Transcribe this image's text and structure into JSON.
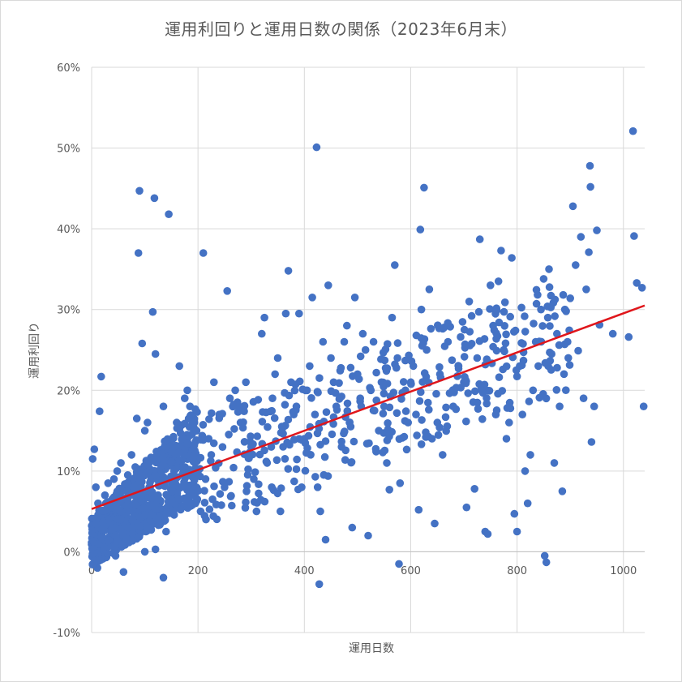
{
  "chart_data": {
    "type": "scatter",
    "title": "運用利回りと運用日数の関係（2023年6月末）",
    "xlabel": "運用日数",
    "ylabel": "運用利回り",
    "xlim": [
      0,
      1040
    ],
    "ylim": [
      -0.1,
      0.6
    ],
    "xticks": [
      0,
      200,
      400,
      600,
      800,
      1000
    ],
    "yticks": [
      -0.1,
      0.0,
      0.1,
      0.2,
      0.3,
      0.4,
      0.5,
      0.6
    ],
    "yticklabels": [
      "-10%",
      "0%",
      "10%",
      "20%",
      "30%",
      "40%",
      "50%",
      "60%"
    ],
    "grid": true,
    "legend": "none",
    "colors": {
      "points": "#4472c4",
      "trendline": "#e0161b",
      "grid": "#d9d9d9"
    },
    "trendline": {
      "type": "linear",
      "x": [
        0,
        1040
      ],
      "y": [
        0.053,
        0.305
      ]
    },
    "series": [
      {
        "points": [
          [
            2,
            0.115
          ],
          [
            5,
            0.127
          ],
          [
            8,
            0.08
          ],
          [
            12,
            0.06
          ],
          [
            15,
            0.174
          ],
          [
            18,
            0.217
          ],
          [
            3,
            0.0
          ],
          [
            6,
            0.01
          ],
          [
            9,
            0.02
          ],
          [
            11,
            -0.02
          ],
          [
            14,
            0.03
          ],
          [
            17,
            0.005
          ],
          [
            22,
            0.04
          ],
          [
            25,
            0.07
          ],
          [
            28,
            0.05
          ],
          [
            31,
            0.085
          ],
          [
            35,
            0.06
          ],
          [
            38,
            0.03
          ],
          [
            42,
            0.09
          ],
          [
            45,
            0.065
          ],
          [
            48,
            0.1
          ],
          [
            52,
            0.075
          ],
          [
            55,
            0.11
          ],
          [
            58,
            0.06
          ],
          [
            61,
            0.08
          ],
          [
            65,
            0.045
          ],
          [
            68,
            0.095
          ],
          [
            72,
            0.07
          ],
          [
            75,
            0.12
          ],
          [
            78,
            0.05
          ],
          [
            82,
            0.105
          ],
          [
            85,
            0.165
          ],
          [
            88,
            0.37
          ],
          [
            90,
            0.447
          ],
          [
            95,
            0.258
          ],
          [
            100,
            0.15
          ],
          [
            105,
            0.16
          ],
          [
            110,
            0.08
          ],
          [
            115,
            0.297
          ],
          [
            118,
            0.438
          ],
          [
            120,
            0.245
          ],
          [
            125,
            0.05
          ],
          [
            130,
            0.09
          ],
          [
            135,
            0.18
          ],
          [
            140,
            0.12
          ],
          [
            145,
            0.418
          ],
          [
            150,
            0.13
          ],
          [
            155,
            0.1
          ],
          [
            160,
            0.16
          ],
          [
            165,
            0.23
          ],
          [
            170,
            0.14
          ],
          [
            175,
            0.19
          ],
          [
            180,
            0.2
          ],
          [
            185,
            0.18
          ],
          [
            190,
            0.12
          ],
          [
            195,
            0.06
          ],
          [
            200,
            0.1
          ],
          [
            205,
            0.05
          ],
          [
            210,
            0.37
          ],
          [
            215,
            0.04
          ],
          [
            135,
            -0.032
          ],
          [
            60,
            -0.025
          ],
          [
            45,
            -0.005
          ],
          [
            100,
            0.0
          ],
          [
            120,
            0.003
          ],
          [
            140,
            0.025
          ],
          [
            220,
            0.14
          ],
          [
            225,
            0.12
          ],
          [
            230,
            0.21
          ],
          [
            240,
            0.17
          ],
          [
            250,
            0.08
          ],
          [
            255,
            0.323
          ],
          [
            260,
            0.19
          ],
          [
            270,
            0.2
          ],
          [
            280,
            0.16
          ],
          [
            290,
            0.21
          ],
          [
            300,
            0.13
          ],
          [
            305,
            0.09
          ],
          [
            310,
            0.05
          ],
          [
            320,
            0.27
          ],
          [
            325,
            0.29
          ],
          [
            330,
            0.11
          ],
          [
            340,
            0.19
          ],
          [
            345,
            0.22
          ],
          [
            350,
            0.24
          ],
          [
            355,
            0.05
          ],
          [
            360,
            0.13
          ],
          [
            365,
            0.295
          ],
          [
            370,
            0.348
          ],
          [
            375,
            0.21
          ],
          [
            380,
            0.17
          ],
          [
            385,
            0.18
          ],
          [
            390,
            0.295
          ],
          [
            395,
            0.08
          ],
          [
            400,
            0.14
          ],
          [
            405,
            0.2
          ],
          [
            410,
            0.23
          ],
          [
            415,
            0.315
          ],
          [
            420,
            0.17
          ],
          [
            423,
            0.501
          ],
          [
            425,
            0.08
          ],
          [
            428,
            -0.04
          ],
          [
            430,
            0.05
          ],
          [
            435,
            0.26
          ],
          [
            440,
            0.015
          ],
          [
            445,
            0.33
          ],
          [
            450,
            0.24
          ],
          [
            455,
            0.21
          ],
          [
            460,
            0.18
          ],
          [
            470,
            0.13
          ],
          [
            475,
            0.26
          ],
          [
            480,
            0.28
          ],
          [
            485,
            0.16
          ],
          [
            490,
            0.03
          ],
          [
            495,
            0.315
          ],
          [
            500,
            0.22
          ],
          [
            505,
            0.19
          ],
          [
            510,
            0.27
          ],
          [
            515,
            0.25
          ],
          [
            520,
            0.02
          ],
          [
            525,
            0.2
          ],
          [
            530,
            0.26
          ],
          [
            540,
            0.15
          ],
          [
            545,
            0.21
          ],
          [
            550,
            0.18
          ],
          [
            555,
            0.11
          ],
          [
            560,
            0.077
          ],
          [
            565,
            0.29
          ],
          [
            570,
            0.355
          ],
          [
            575,
            0.24
          ],
          [
            578,
            -0.015
          ],
          [
            580,
            0.085
          ],
          [
            590,
            0.2
          ],
          [
            595,
            0.16
          ],
          [
            600,
            0.21
          ],
          [
            605,
            0.23
          ],
          [
            610,
            0.17
          ],
          [
            615,
            0.052
          ],
          [
            618,
            0.399
          ],
          [
            620,
            0.3
          ],
          [
            625,
            0.451
          ],
          [
            630,
            0.25
          ],
          [
            635,
            0.325
          ],
          [
            640,
            0.14
          ],
          [
            645,
            0.035
          ],
          [
            650,
            0.16
          ],
          [
            655,
            0.22
          ],
          [
            660,
            0.12
          ],
          [
            670,
            0.26
          ],
          [
            680,
            0.18
          ],
          [
            690,
            0.23
          ],
          [
            700,
            0.21
          ],
          [
            705,
            0.055
          ],
          [
            710,
            0.31
          ],
          [
            720,
            0.078
          ],
          [
            725,
            0.24
          ],
          [
            730,
            0.387
          ],
          [
            735,
            0.2
          ],
          [
            740,
            0.025
          ],
          [
            745,
            0.022
          ],
          [
            750,
            0.33
          ],
          [
            755,
            0.28
          ],
          [
            760,
            0.17
          ],
          [
            765,
            0.335
          ],
          [
            770,
            0.373
          ],
          [
            775,
            0.25
          ],
          [
            780,
            0.14
          ],
          [
            785,
            0.16
          ],
          [
            790,
            0.364
          ],
          [
            795,
            0.047
          ],
          [
            800,
            0.025
          ],
          [
            805,
            0.23
          ],
          [
            810,
            0.17
          ],
          [
            815,
            0.1
          ],
          [
            820,
            0.06
          ],
          [
            825,
            0.12
          ],
          [
            830,
            0.2
          ],
          [
            835,
            0.26
          ],
          [
            840,
            0.23
          ],
          [
            845,
            0.3
          ],
          [
            850,
            0.338
          ],
          [
            852,
            -0.005
          ],
          [
            855,
            -0.013
          ],
          [
            858,
            0.29
          ],
          [
            860,
            0.35
          ],
          [
            865,
            0.245
          ],
          [
            870,
            0.11
          ],
          [
            875,
            0.27
          ],
          [
            880,
            0.18
          ],
          [
            885,
            0.075
          ],
          [
            890,
            0.3
          ],
          [
            895,
            0.26
          ],
          [
            900,
            0.314
          ],
          [
            905,
            0.428
          ],
          [
            910,
            0.355
          ],
          [
            915,
            0.249
          ],
          [
            920,
            0.39
          ],
          [
            925,
            0.19
          ],
          [
            930,
            0.325
          ],
          [
            935,
            0.371
          ],
          [
            937,
            0.478
          ],
          [
            938,
            0.452
          ],
          [
            940,
            0.136
          ],
          [
            945,
            0.18
          ],
          [
            950,
            0.398
          ],
          [
            955,
            0.281
          ],
          [
            980,
            0.27
          ],
          [
            1010,
            0.266
          ],
          [
            1018,
            0.521
          ],
          [
            1020,
            0.391
          ],
          [
            1025,
            0.333
          ],
          [
            1035,
            0.327
          ],
          [
            1038,
            0.18
          ]
        ]
      }
    ]
  }
}
